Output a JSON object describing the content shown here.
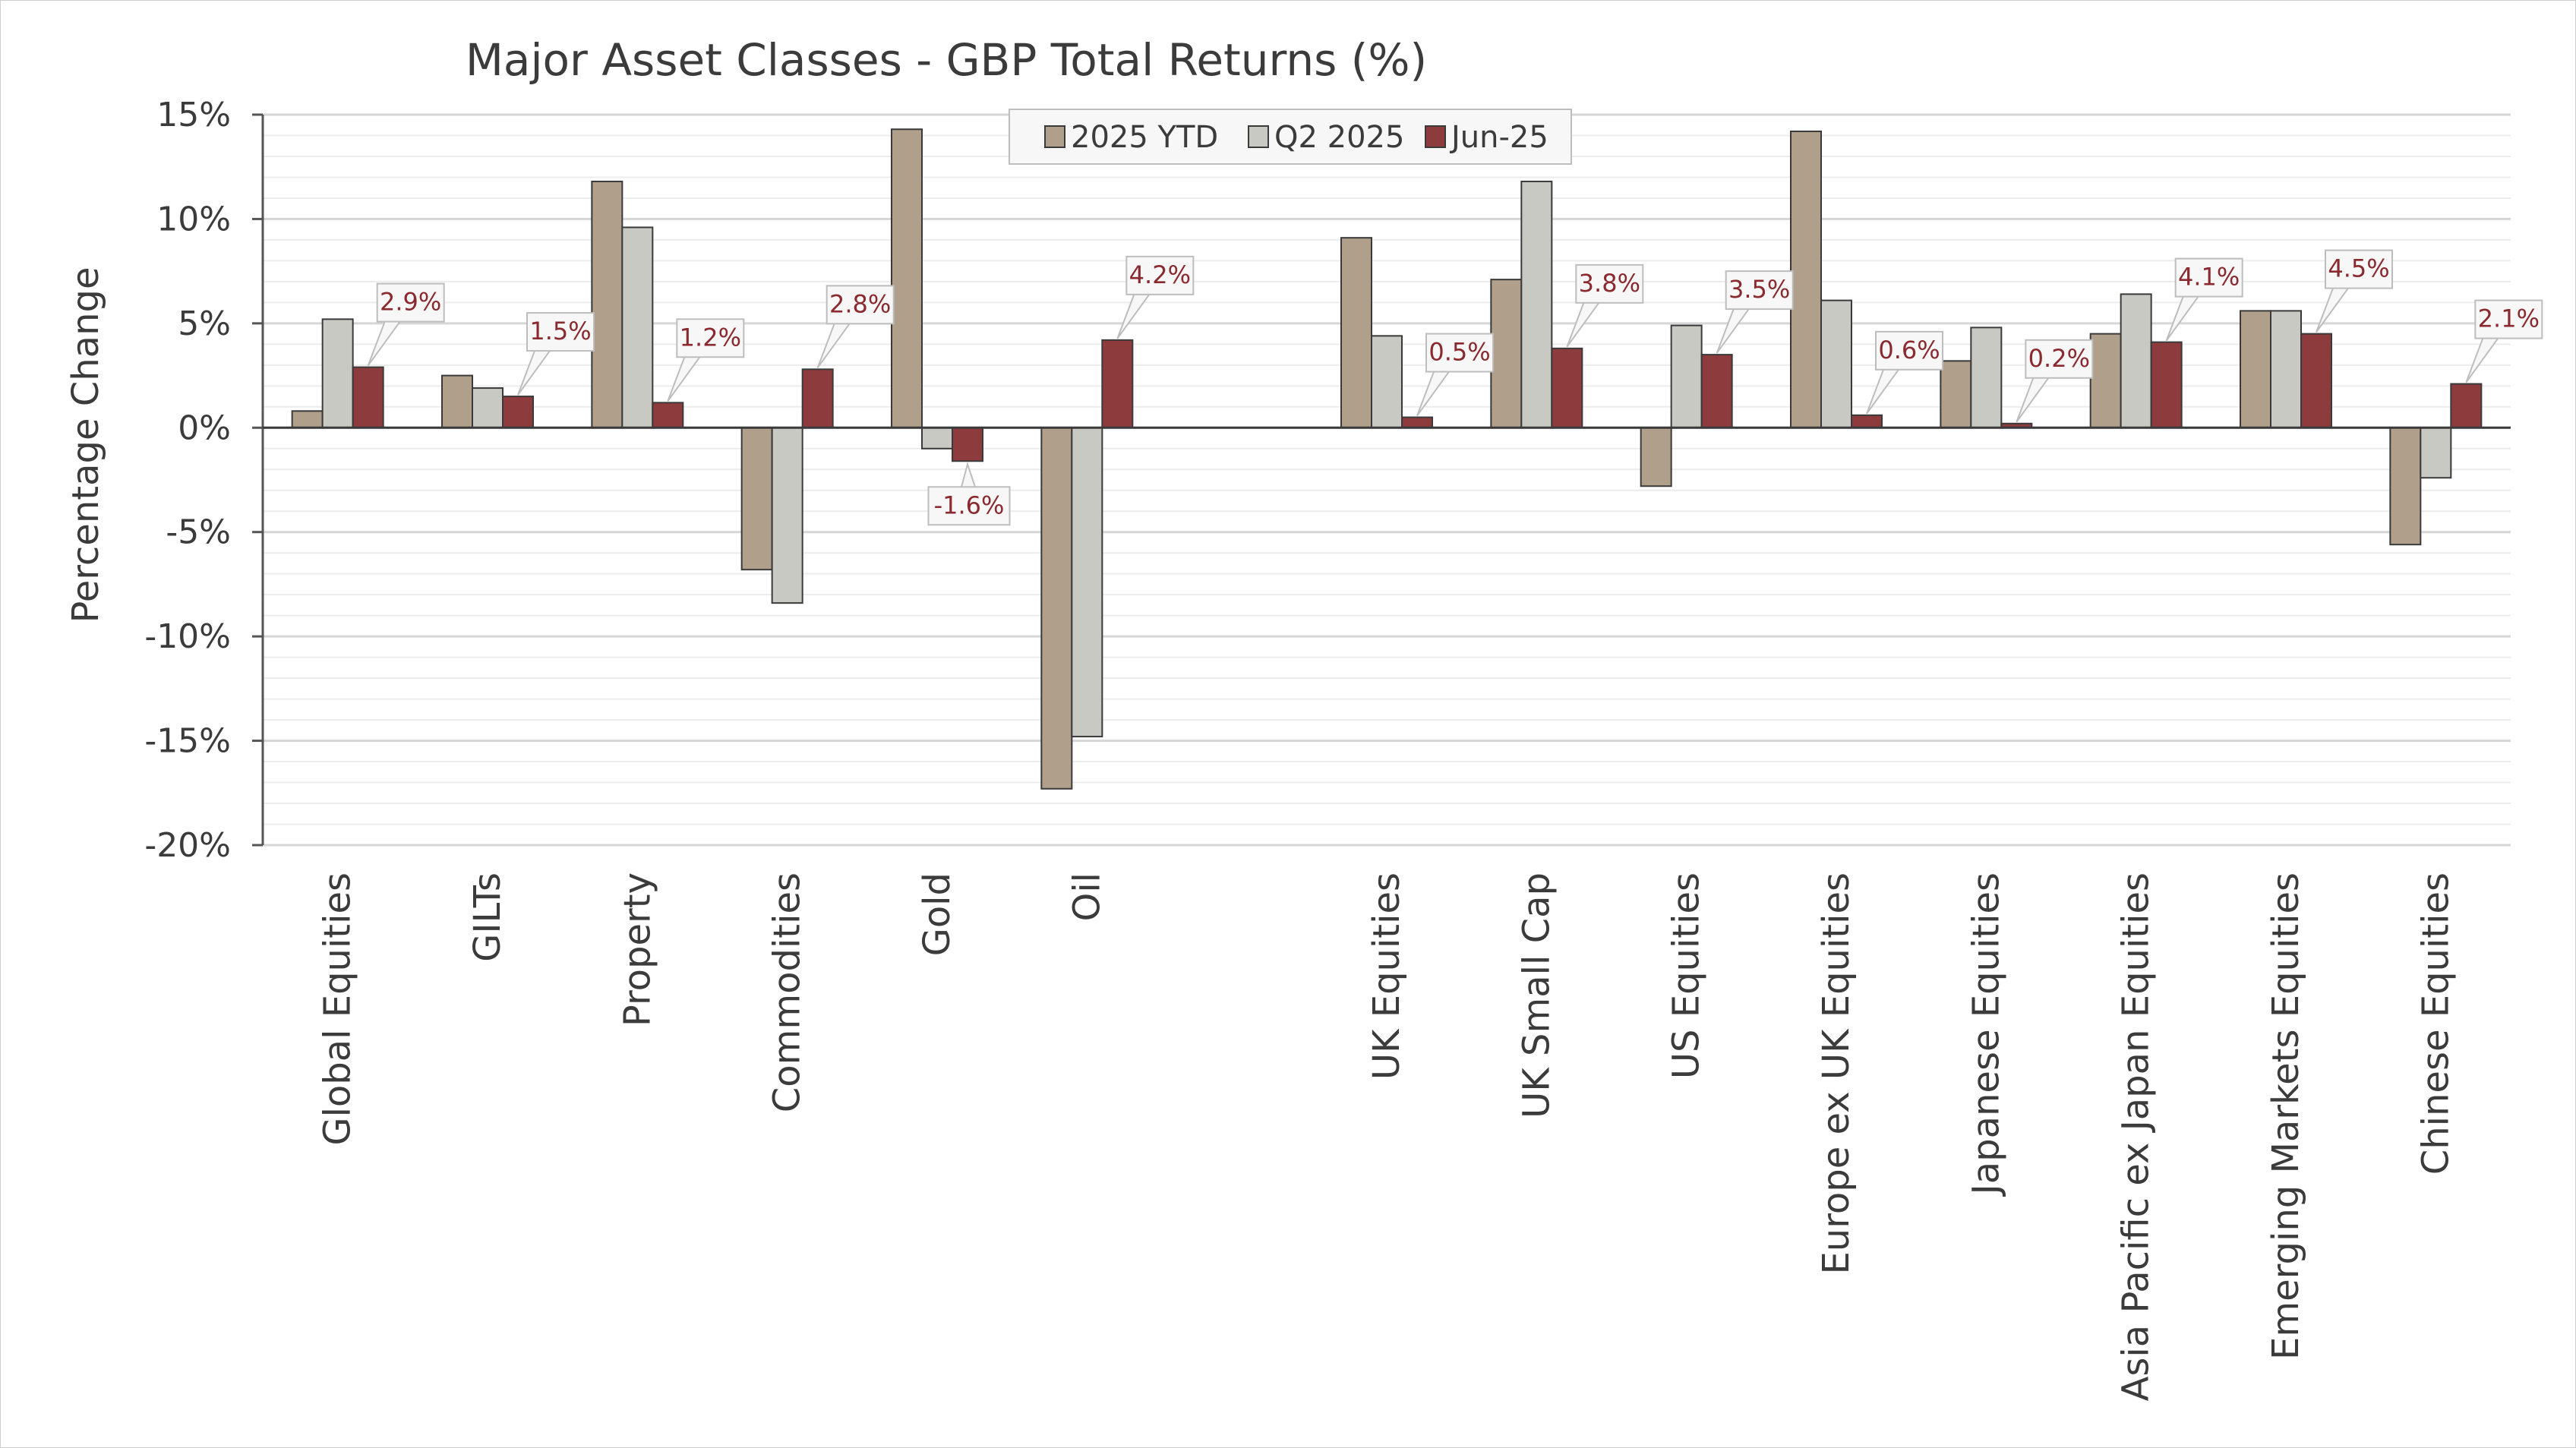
{
  "chart_data": {
    "type": "bar",
    "title": "Major Asset Classes - GBP Total Returns (%)",
    "ylabel": "Percentage Change",
    "xlabel": "",
    "ylim": [
      -20,
      15
    ],
    "ytick_step": 5,
    "ytick_labels": [
      "15%",
      "10%",
      "5%",
      "0%",
      "-5%",
      "-10%",
      "-15%",
      "-20%"
    ],
    "legend_position": "top-center",
    "grid": true,
    "categories": [
      "Global Equities",
      "GILTs",
      "Property",
      "Commodities",
      "Gold",
      "Oil",
      "",
      "UK Equities",
      "UK Small Cap",
      "US Equities",
      "Europe ex UK Equities",
      "Japanese Equities",
      "Asia Pacific ex Japan Equities",
      "Emerging Markets Equities",
      "Chinese Equities"
    ],
    "series": [
      {
        "name": "2025 YTD",
        "color": "#b09f8a",
        "values": [
          0.8,
          2.5,
          11.8,
          -6.8,
          14.3,
          -17.3,
          null,
          9.1,
          7.1,
          -2.8,
          14.2,
          3.2,
          4.5,
          5.6,
          -5.6
        ]
      },
      {
        "name": "Q2 2025",
        "color": "#c9c9c4",
        "values": [
          5.2,
          1.9,
          9.6,
          -8.4,
          -1.0,
          -14.8,
          null,
          4.4,
          11.8,
          4.9,
          6.1,
          4.8,
          6.4,
          5.6,
          -2.4
        ]
      },
      {
        "name": "Jun-25",
        "color": "#8e3b3e",
        "values": [
          2.9,
          1.5,
          1.2,
          2.8,
          -1.6,
          4.2,
          null,
          0.5,
          3.8,
          3.5,
          0.6,
          0.2,
          4.1,
          4.5,
          2.1
        ],
        "data_labels": [
          "2.9%",
          "1.5%",
          "1.2%",
          "2.8%",
          "-1.6%",
          "4.2%",
          "",
          "0.5%",
          "3.8%",
          "3.5%",
          "0.6%",
          "0.2%",
          "4.1%",
          "4.5%",
          "2.1%"
        ]
      }
    ]
  }
}
